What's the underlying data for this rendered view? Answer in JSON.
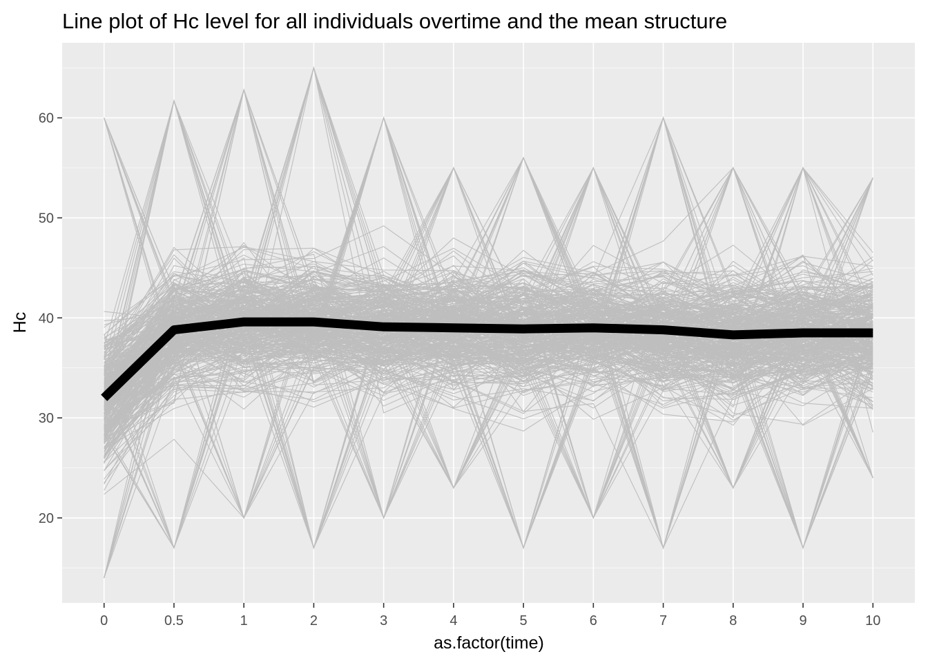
{
  "chart_data": {
    "type": "line",
    "title": "Line plot of Hc level for all individuals overtime and the mean structure",
    "xlabel": "as.factor(time)",
    "ylabel": "Hc",
    "categories": [
      "0",
      "0.5",
      "1",
      "2",
      "3",
      "4",
      "5",
      "6",
      "7",
      "8",
      "9",
      "10"
    ],
    "yticks": [
      20,
      30,
      40,
      50,
      60
    ],
    "ylim": [
      11.5,
      67.5
    ],
    "grid": true,
    "legend": "none",
    "individual_range": {
      "min": [
        14,
        17,
        20,
        17,
        20,
        23,
        17,
        20,
        17,
        23,
        17,
        24
      ],
      "max": [
        60,
        61.7,
        62.8,
        65,
        60,
        55,
        56,
        55,
        60,
        55,
        55,
        54
      ]
    },
    "series": [
      {
        "values": [
          32.0,
          38.8,
          39.6,
          39.6,
          39.1,
          39.0,
          38.9,
          39.0,
          38.8,
          38.3,
          38.5,
          38.5
        ]
      }
    ],
    "colors": {
      "panel": "#ebebeb",
      "grid_major": "#ffffff",
      "individual_lines": "#bebebe",
      "mean_line": "#000000"
    }
  }
}
